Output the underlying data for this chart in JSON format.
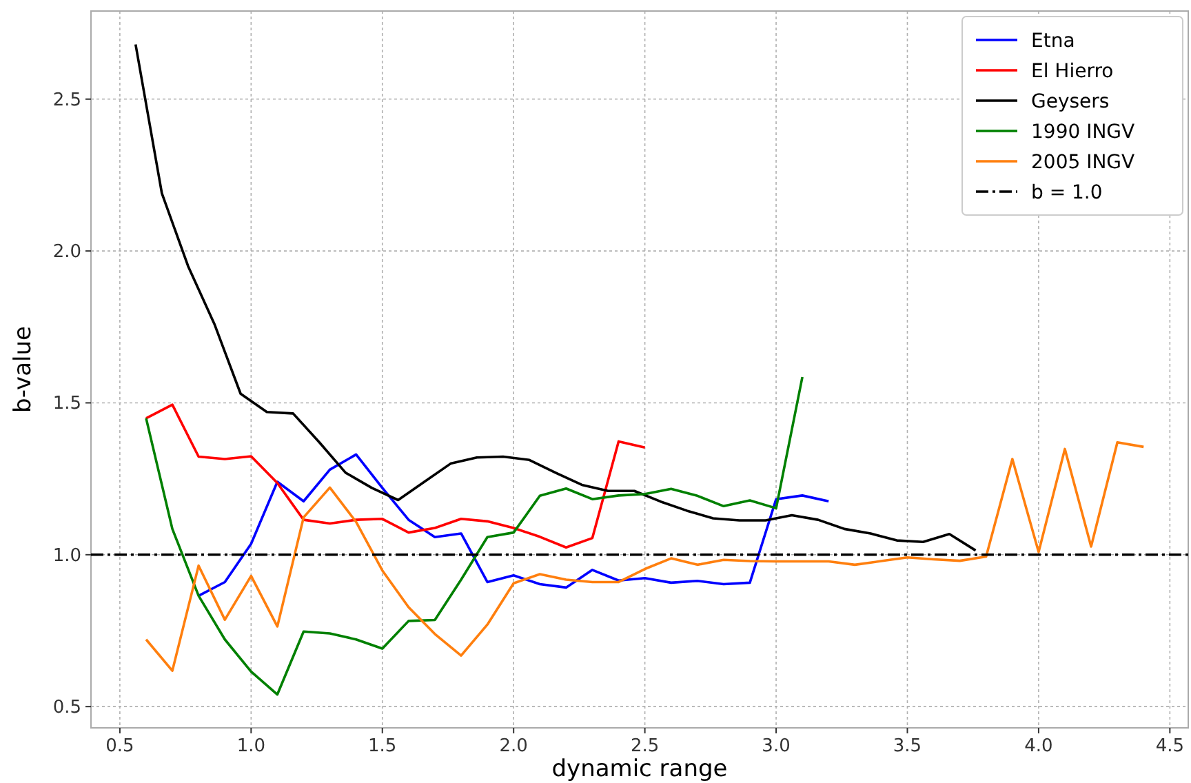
{
  "chart_data": {
    "type": "line",
    "xlabel": "dynamic range",
    "ylabel": "b-value",
    "xlim": [
      0.39,
      4.57
    ],
    "ylim": [
      0.43,
      2.79
    ],
    "xticks": [
      {
        "value": 0.5,
        "label": "0.5"
      },
      {
        "value": 1,
        "label": "1.0"
      },
      {
        "value": 1.5,
        "label": "1.5"
      },
      {
        "value": 2,
        "label": "2.0"
      },
      {
        "value": 2.5,
        "label": "2.5"
      },
      {
        "value": 3,
        "label": "3.0"
      },
      {
        "value": 3.5,
        "label": "3.5"
      },
      {
        "value": 4,
        "label": "4.0"
      },
      {
        "value": 4.5,
        "label": "4.5"
      }
    ],
    "yticks": [
      {
        "value": 0.5,
        "label": "0.5"
      },
      {
        "value": 1,
        "label": "1.0"
      },
      {
        "value": 1.5,
        "label": "1.5"
      },
      {
        "value": 2,
        "label": "2.0"
      },
      {
        "value": 2.5,
        "label": "2.5"
      }
    ],
    "grid": true,
    "legend": "top right",
    "marker": "none",
    "line_style": "solid",
    "series": [
      {
        "name": "Etna",
        "color": "#0000ff",
        "x": [
          0.8,
          0.9,
          1.0,
          1.1,
          1.2,
          1.3,
          1.4,
          1.5,
          1.6,
          1.7,
          1.8,
          1.9,
          2.0,
          2.1,
          2.2,
          2.3,
          2.4,
          2.5,
          2.6,
          2.7,
          2.8,
          2.9,
          3.0,
          3.1,
          3.2
        ],
        "values": [
          0.865,
          0.91,
          1.036,
          1.24,
          1.176,
          1.28,
          1.33,
          1.22,
          1.115,
          1.058,
          1.07,
          0.91,
          0.932,
          0.903,
          0.892,
          0.95,
          0.915,
          0.923,
          0.908,
          0.914,
          0.903,
          0.908,
          1.183,
          1.195,
          1.176
        ]
      },
      {
        "name": "El Hierro",
        "color": "#ff0000",
        "x": [
          0.6,
          0.7,
          0.8,
          0.9,
          1.0,
          1.1,
          1.2,
          1.3,
          1.4,
          1.5,
          1.6,
          1.7,
          1.8,
          1.9,
          2.0,
          2.1,
          2.2,
          2.3,
          2.4,
          2.5
        ],
        "values": [
          1.449,
          1.494,
          1.323,
          1.315,
          1.324,
          1.236,
          1.115,
          1.103,
          1.115,
          1.118,
          1.073,
          1.088,
          1.118,
          1.11,
          1.088,
          1.059,
          1.024,
          1.055,
          1.373,
          1.353
        ]
      },
      {
        "name": "Geysers",
        "color": "#000000",
        "x": [
          0.56,
          0.66,
          0.76,
          0.86,
          0.96,
          1.06,
          1.16,
          1.26,
          1.36,
          1.46,
          1.56,
          1.66,
          1.76,
          1.86,
          1.96,
          2.06,
          2.16,
          2.26,
          2.36,
          2.46,
          2.56,
          2.66,
          2.76,
          2.86,
          2.96,
          3.06,
          3.16,
          3.26,
          3.36,
          3.46,
          3.56,
          3.66,
          3.76
        ],
        "values": [
          2.68,
          2.19,
          1.95,
          1.76,
          1.53,
          1.47,
          1.465,
          1.37,
          1.27,
          1.22,
          1.18,
          1.24,
          1.3,
          1.32,
          1.323,
          1.312,
          1.27,
          1.23,
          1.21,
          1.21,
          1.175,
          1.145,
          1.12,
          1.113,
          1.113,
          1.13,
          1.115,
          1.085,
          1.07,
          1.047,
          1.042,
          1.068,
          1.014
        ]
      },
      {
        "name": "1990 INGV",
        "color": "#008000",
        "x": [
          0.6,
          0.7,
          0.8,
          0.9,
          1.0,
          1.1,
          1.2,
          1.3,
          1.4,
          1.5,
          1.6,
          1.7,
          1.8,
          1.9,
          2.0,
          2.1,
          2.2,
          2.3,
          2.4,
          2.5,
          2.6,
          2.7,
          2.8,
          2.9,
          3.0,
          3.1
        ],
        "values": [
          1.449,
          1.085,
          0.865,
          0.721,
          0.615,
          0.54,
          0.747,
          0.741,
          0.721,
          0.691,
          0.782,
          0.785,
          0.918,
          1.058,
          1.073,
          1.194,
          1.218,
          1.183,
          1.195,
          1.2,
          1.217,
          1.194,
          1.16,
          1.179,
          1.153,
          1.585
        ]
      },
      {
        "name": "2005 INGV",
        "color": "#ff7f0e",
        "x": [
          0.6,
          0.7,
          0.8,
          0.9,
          1.0,
          1.1,
          1.2,
          1.3,
          1.4,
          1.5,
          1.6,
          1.7,
          1.8,
          1.9,
          2.0,
          2.1,
          2.2,
          2.3,
          2.4,
          2.5,
          2.6,
          2.7,
          2.8,
          2.9,
          3.0,
          3.1,
          3.2,
          3.3,
          3.4,
          3.5,
          3.6,
          3.7,
          3.8,
          3.9,
          4.0,
          4.1,
          4.2,
          4.3,
          4.4
        ],
        "values": [
          0.721,
          0.618,
          0.964,
          0.786,
          0.93,
          0.764,
          1.123,
          1.221,
          1.108,
          0.948,
          0.827,
          0.739,
          0.668,
          0.77,
          0.906,
          0.936,
          0.918,
          0.91,
          0.91,
          0.953,
          0.988,
          0.967,
          0.983,
          0.979,
          0.978,
          0.978,
          0.978,
          0.967,
          0.979,
          0.991,
          0.985,
          0.98,
          0.994,
          1.315,
          1.009,
          1.348,
          1.027,
          1.37,
          1.355
        ]
      }
    ],
    "ref_lines": [
      {
        "axis": "y",
        "value": 1.0,
        "label": "b = 1.0",
        "color": "#000000",
        "line_style": "dashdot"
      }
    ]
  }
}
